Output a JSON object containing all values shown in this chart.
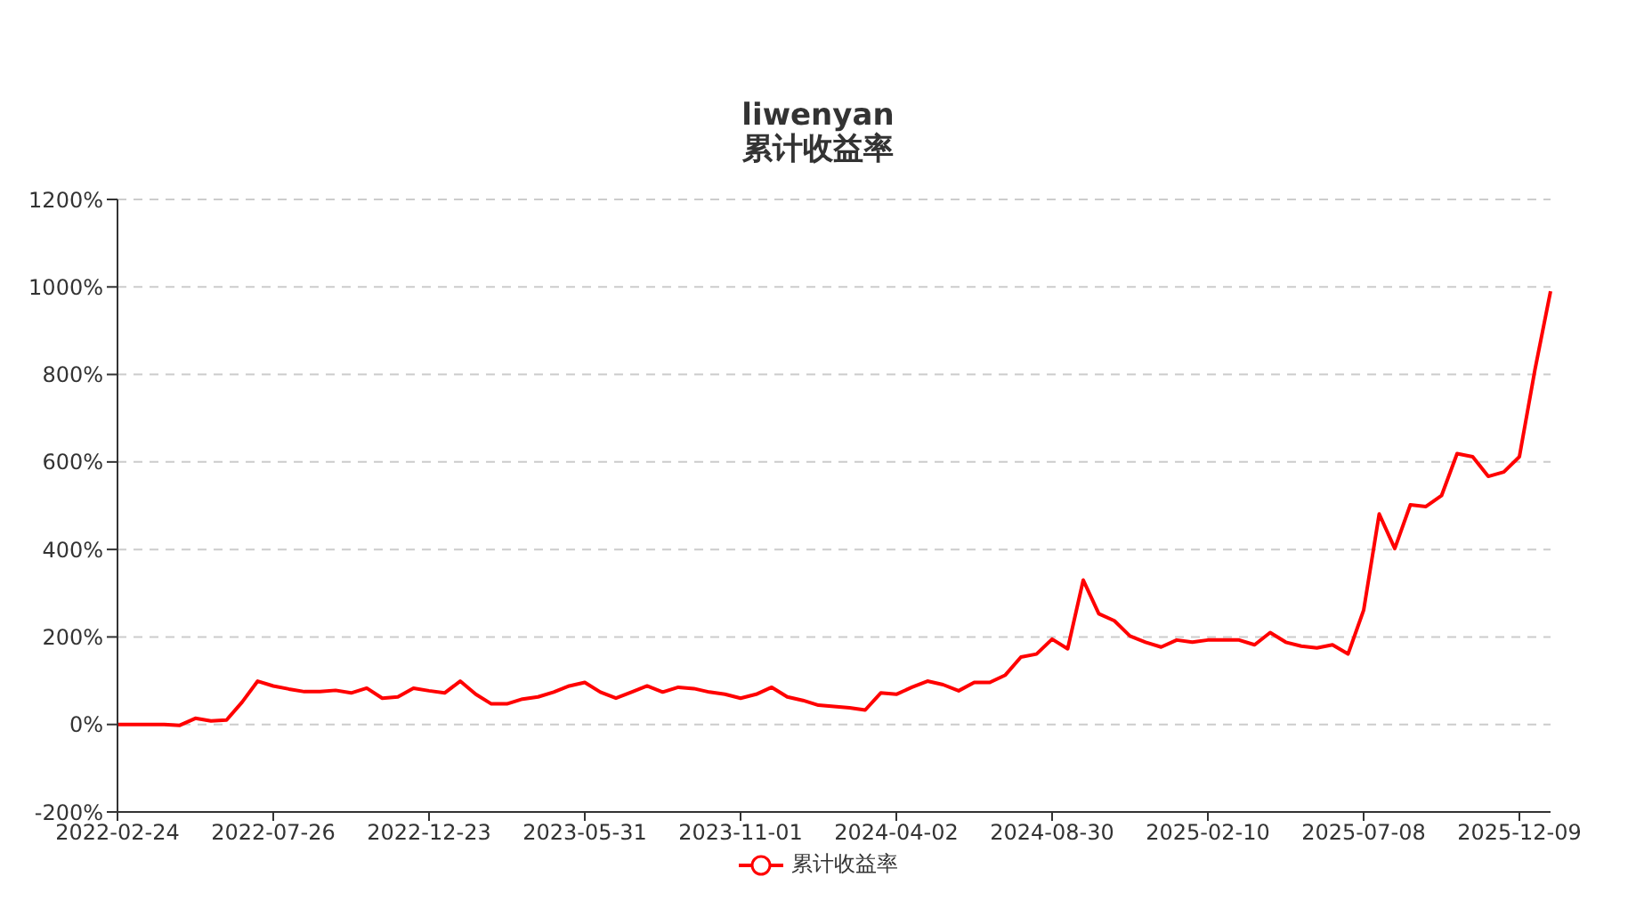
{
  "chart_data": {
    "type": "line",
    "title": "liwenyan",
    "subtitle": "累计收益率",
    "categories": [
      "2022-02-24",
      null,
      null,
      null,
      null,
      null,
      null,
      null,
      null,
      null,
      "2022-07-26",
      null,
      null,
      null,
      null,
      null,
      null,
      null,
      null,
      null,
      "2022-12-23",
      null,
      null,
      null,
      null,
      null,
      null,
      null,
      null,
      null,
      "2023-05-31",
      null,
      null,
      null,
      null,
      null,
      null,
      null,
      null,
      null,
      "2023-11-01",
      null,
      null,
      null,
      null,
      null,
      null,
      null,
      null,
      null,
      "2024-04-02",
      null,
      null,
      null,
      null,
      null,
      null,
      null,
      null,
      null,
      "2024-08-30",
      null,
      null,
      null,
      null,
      null,
      null,
      null,
      null,
      null,
      "2025-02-10",
      null,
      null,
      null,
      null,
      null,
      null,
      null,
      null,
      null,
      "2025-07-08",
      null,
      null,
      null,
      null,
      null,
      null,
      null,
      null,
      null,
      "2025-12-09",
      null,
      null
    ],
    "series": [
      {
        "name": "累计收益率",
        "color": "#ff0000",
        "values": [
          0,
          0,
          0,
          0,
          -2,
          14,
          8,
          10,
          51,
          99,
          88,
          81,
          75,
          75,
          78,
          72,
          83,
          60,
          63,
          83,
          77,
          72,
          99,
          69,
          47,
          47,
          58,
          63,
          74,
          88,
          96,
          74,
          60,
          74,
          88,
          74,
          85,
          82,
          74,
          69,
          60,
          69,
          85,
          63,
          55,
          44,
          41,
          38,
          33,
          72,
          69,
          85,
          99,
          91,
          77,
          96,
          96,
          113,
          154,
          161,
          195,
          173,
          330,
          253,
          237,
          202,
          188,
          177,
          193,
          188,
          193,
          193,
          193,
          182,
          210,
          188,
          179,
          175,
          182,
          161,
          261,
          481,
          402,
          502,
          498,
          523,
          619,
          612,
          567,
          577,
          612,
          811,
          990
        ]
      }
    ],
    "ylim": [
      -200,
      1200
    ],
    "yticks": [
      {
        "value": -200,
        "label": "-200%"
      },
      {
        "value": 0,
        "label": "0%"
      },
      {
        "value": 200,
        "label": "200%"
      },
      {
        "value": 400,
        "label": "400%"
      },
      {
        "value": 600,
        "label": "600%"
      },
      {
        "value": 800,
        "label": "800%"
      },
      {
        "value": 1000,
        "label": "1000%"
      },
      {
        "value": 1200,
        "label": "1200%"
      }
    ],
    "grid": "y",
    "legend": "bottom",
    "marker": "none",
    "line_style": "solid"
  }
}
